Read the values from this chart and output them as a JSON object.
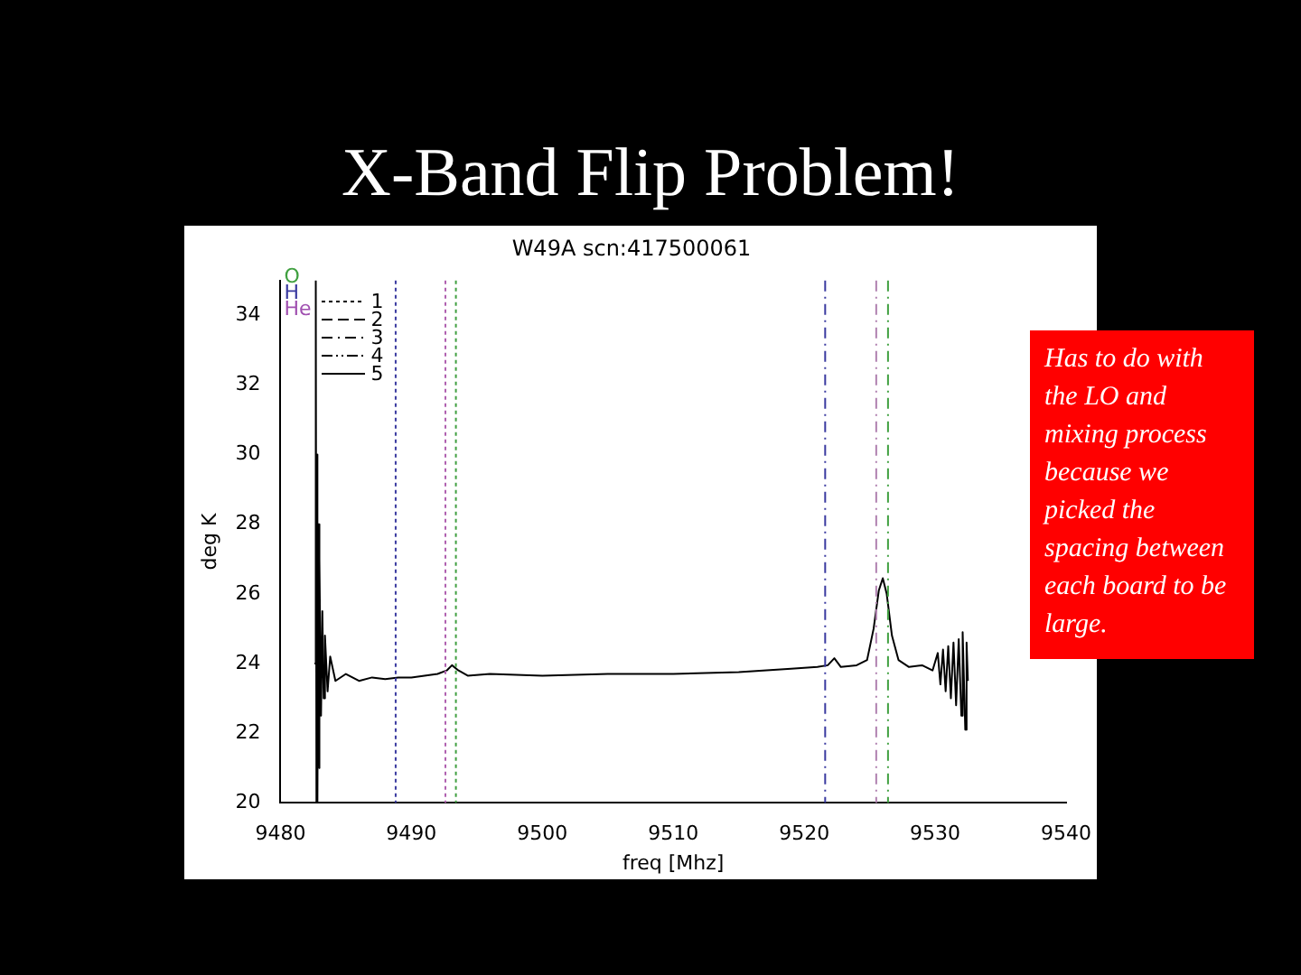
{
  "chart_data": {
    "type": "line",
    "title": "X-Band Flip Problem!",
    "subtitle": "W49A scn:417500061",
    "xlabel": "freq [Mhz]",
    "ylabel": "deg K",
    "annotations": [
      "O",
      "H",
      "He",
      "1",
      "2",
      "3",
      "4",
      "5",
      "Has to do with the LO and mixing process because we picked the spacing between each board to be large."
    ],
    "x": [
      9482.6,
      9482.7,
      9482.75,
      9482.8,
      9482.85,
      9482.9,
      9482.95,
      9483.0,
      9483.1,
      9483.2,
      9483.3,
      9483.4,
      9483.6,
      9483.8,
      9484.2,
      9485,
      9486,
      9487,
      9488,
      9489,
      9490,
      9491,
      9492,
      9492.7,
      9493.1,
      9493.6,
      9494.3,
      9496,
      9500,
      9505,
      9510,
      9515,
      9519,
      9521,
      9521.8,
      9522.3,
      9522.8,
      9524,
      9524.8,
      9525.3,
      9525.7,
      9526.0,
      9526.3,
      9526.7,
      9527.2,
      9528,
      9529,
      9529.8,
      9530.2,
      9530.4,
      9530.6,
      9530.8,
      9531.0,
      9531.2,
      9531.4,
      9531.6,
      9531.8,
      9532.0,
      9532.1,
      9532.3,
      9532.4,
      9532.5
    ],
    "series": [
      {
        "color": "#000000",
        "values": [
          24,
          35,
          20,
          30,
          20,
          28,
          21,
          27,
          22.5,
          25.5,
          23,
          24.8,
          23.2,
          24.2,
          23.5,
          23.7,
          23.5,
          23.6,
          23.55,
          23.6,
          23.6,
          23.65,
          23.7,
          23.8,
          23.95,
          23.8,
          23.65,
          23.7,
          23.65,
          23.7,
          23.7,
          23.75,
          23.85,
          23.9,
          23.95,
          24.15,
          23.9,
          23.95,
          24.1,
          25,
          26.1,
          26.45,
          26,
          24.8,
          24.1,
          23.9,
          23.95,
          23.8,
          24.3,
          23.4,
          24.4,
          23.2,
          24.5,
          23,
          24.6,
          22.8,
          24.7,
          22.5,
          24.9,
          22.1,
          24.6,
          23.5
        ]
      }
    ],
    "xlim": [
      9480,
      9540
    ],
    "xticks": [
      9480,
      9490,
      9500,
      9510,
      9520,
      9530,
      9540
    ],
    "ylim": [
      20,
      35
    ],
    "yticks": [
      20,
      22,
      24,
      26,
      28,
      30,
      32,
      34
    ],
    "ref_lines": [
      {
        "axis": "x",
        "value": 9488.8,
        "color": "#3a3aa0",
        "line_style": "dotted"
      },
      {
        "axis": "x",
        "value": 9492.6,
        "color": "#b060b0",
        "line_style": "dotted"
      },
      {
        "axis": "x",
        "value": 9493.4,
        "color": "#40a040",
        "line_style": "dotted"
      },
      {
        "axis": "x",
        "value": 9521.6,
        "color": "#3a3aa0",
        "line_style": "dashed"
      },
      {
        "axis": "x",
        "value": 9525.5,
        "color": "#b080b0",
        "line_style": "dashed"
      },
      {
        "axis": "x",
        "value": 9526.4,
        "color": "#40a040",
        "line_style": "dashed"
      }
    ],
    "grid": false,
    "legend": false,
    "marker": "none",
    "line_style": "solid"
  }
}
